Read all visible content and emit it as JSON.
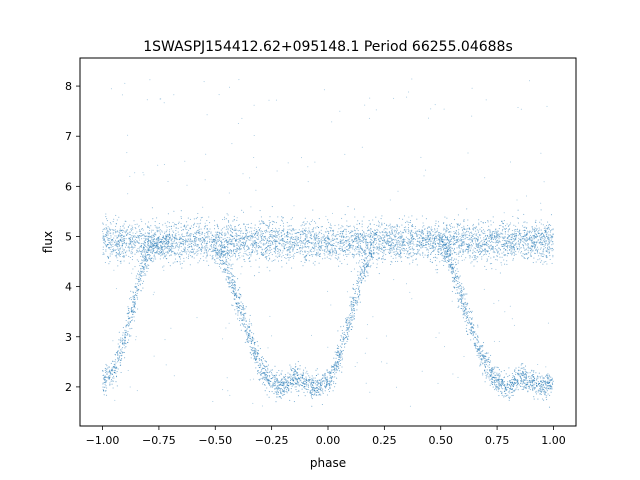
{
  "chart_data": {
    "type": "scatter",
    "title": "1SWASPJ154412.62+095148.1 Period 66255.04688s",
    "xlabel": "phase",
    "ylabel": "flux",
    "xlim": [
      -1.1,
      1.1
    ],
    "ylim": [
      1.22,
      8.56
    ],
    "x_ticks": [
      -1.0,
      -0.75,
      -0.5,
      -0.25,
      0.0,
      0.25,
      0.5,
      0.75,
      1.0
    ],
    "x_tick_labels": [
      "−1.00",
      "−0.75",
      "−0.50",
      "−0.25",
      "0.00",
      "0.25",
      "0.50",
      "0.75",
      "1.00"
    ],
    "y_ticks": [
      2,
      3,
      4,
      5,
      6,
      7,
      8
    ],
    "y_tick_labels": [
      "2",
      "3",
      "4",
      "5",
      "6",
      "7",
      "8"
    ],
    "grid": false,
    "marker_color": "#1f77b4",
    "series": [
      {
        "description_points": [
          {
            "x": -1.0,
            "y": 2.1
          },
          {
            "x": -0.95,
            "y": 2.3
          },
          {
            "x": -0.9,
            "y": 3.0
          },
          {
            "x": -0.85,
            "y": 3.9
          },
          {
            "x": -0.8,
            "y": 4.7
          },
          {
            "x": -0.7,
            "y": 4.9
          },
          {
            "x": -0.5,
            "y": 4.9
          },
          {
            "x": -0.45,
            "y": 4.4
          },
          {
            "x": -0.4,
            "y": 3.7
          },
          {
            "x": -0.35,
            "y": 3.0
          },
          {
            "x": -0.3,
            "y": 2.4
          },
          {
            "x": -0.25,
            "y": 2.1
          },
          {
            "x": -0.2,
            "y": 2.0
          },
          {
            "x": -0.15,
            "y": 2.2
          },
          {
            "x": -0.1,
            "y": 2.1
          },
          {
            "x": -0.05,
            "y": 2.0
          },
          {
            "x": 0.0,
            "y": 2.1
          },
          {
            "x": 0.05,
            "y": 2.6
          },
          {
            "x": 0.1,
            "y": 3.4
          },
          {
            "x": 0.15,
            "y": 4.2
          },
          {
            "x": 0.2,
            "y": 4.8
          },
          {
            "x": 0.3,
            "y": 4.9
          },
          {
            "x": 0.5,
            "y": 4.9
          },
          {
            "x": 0.55,
            "y": 4.4
          },
          {
            "x": 0.6,
            "y": 3.7
          },
          {
            "x": 0.65,
            "y": 3.0
          },
          {
            "x": 0.7,
            "y": 2.4
          },
          {
            "x": 0.75,
            "y": 2.1
          },
          {
            "x": 0.8,
            "y": 2.0
          },
          {
            "x": 0.85,
            "y": 2.2
          },
          {
            "x": 0.9,
            "y": 2.1
          },
          {
            "x": 0.95,
            "y": 2.0
          },
          {
            "x": 1.0,
            "y": 2.1
          }
        ],
        "baseline_flux": 4.9,
        "baseline_scatter": 0.2,
        "phase_range": [
          -1.0,
          1.0
        ],
        "eclipse_minima_phase": [
          -1.0,
          -0.22,
          0.0,
          0.78,
          1.0
        ],
        "eclipse_min_flux": 2.0
      }
    ]
  }
}
